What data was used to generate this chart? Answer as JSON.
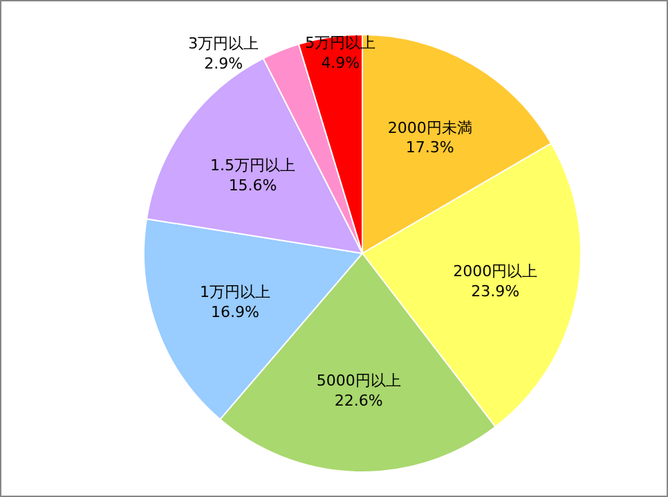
{
  "chart_data": {
    "type": "pie",
    "categories": [
      "2000円未満",
      "2000円以上",
      "5000円以上",
      "1万円以上",
      "1.5万円以上",
      "3万円以上",
      "5万円以上"
    ],
    "values": [
      17.3,
      23.9,
      22.6,
      16.9,
      15.6,
      2.9,
      4.9
    ],
    "colors": [
      "#ffc932",
      "#ffff66",
      "#a9d86e",
      "#99ccff",
      "#cca6ff",
      "#ff8fcc",
      "#ff0000"
    ],
    "value_labels": [
      "17.3%",
      "23.9%",
      "22.6%",
      "16.9%",
      "15.6%",
      "2.9%",
      "4.9%"
    ]
  }
}
